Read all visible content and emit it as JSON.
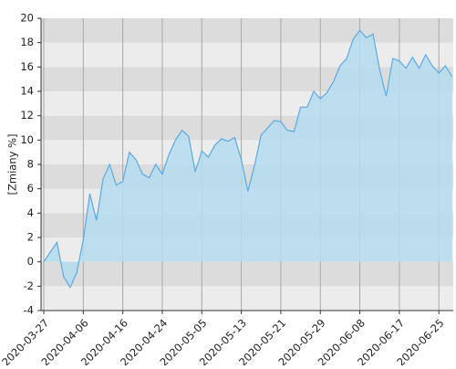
{
  "chart_data": {
    "type": "area",
    "ylabel": "[Zmiany %]",
    "categories": [
      "2020-03-27",
      null,
      null,
      null,
      null,
      null,
      "2020-04-06",
      null,
      null,
      null,
      null,
      null,
      "2020-04-16",
      null,
      null,
      null,
      null,
      null,
      "2020-04-24",
      null,
      null,
      null,
      null,
      null,
      "2020-05-05",
      null,
      null,
      null,
      null,
      null,
      "2020-05-13",
      null,
      null,
      null,
      null,
      null,
      "2020-05-21",
      null,
      null,
      null,
      null,
      null,
      "2020-05-29",
      null,
      null,
      null,
      null,
      null,
      "2020-06-08",
      null,
      null,
      null,
      null,
      null,
      "2020-06-17",
      null,
      null,
      null,
      null,
      null,
      "2020-06-25",
      null,
      null
    ],
    "values": [
      0,
      0.8,
      1.6,
      -1.2,
      -2.1,
      -0.9,
      1.8,
      5.6,
      3.4,
      6.8,
      8.0,
      6.3,
      6.6,
      9.0,
      8.4,
      7.2,
      6.9,
      8.0,
      7.2,
      8.8,
      10.0,
      10.8,
      10.3,
      7.4,
      9.1,
      8.6,
      9.6,
      10.1,
      9.9,
      10.2,
      8.4,
      5.8,
      7.9,
      10.4,
      11.0,
      11.6,
      11.5,
      10.8,
      10.7,
      12.7,
      12.7,
      14.0,
      13.4,
      13.9,
      14.8,
      16.1,
      16.7,
      18.3,
      19.0,
      18.4,
      18.7,
      15.8,
      13.6,
      16.7,
      16.5,
      15.9,
      16.8,
      15.9,
      17.0,
      16.1,
      15.5,
      16.1,
      15.2
    ],
    "color": "#5aaae8",
    "fill_color": "#b4dcee",
    "ylim": [
      -4,
      20
    ],
    "yticks": [
      -4,
      -2,
      0,
      2,
      4,
      6,
      8,
      10,
      12,
      14,
      16,
      18,
      20
    ],
    "grid": true
  }
}
